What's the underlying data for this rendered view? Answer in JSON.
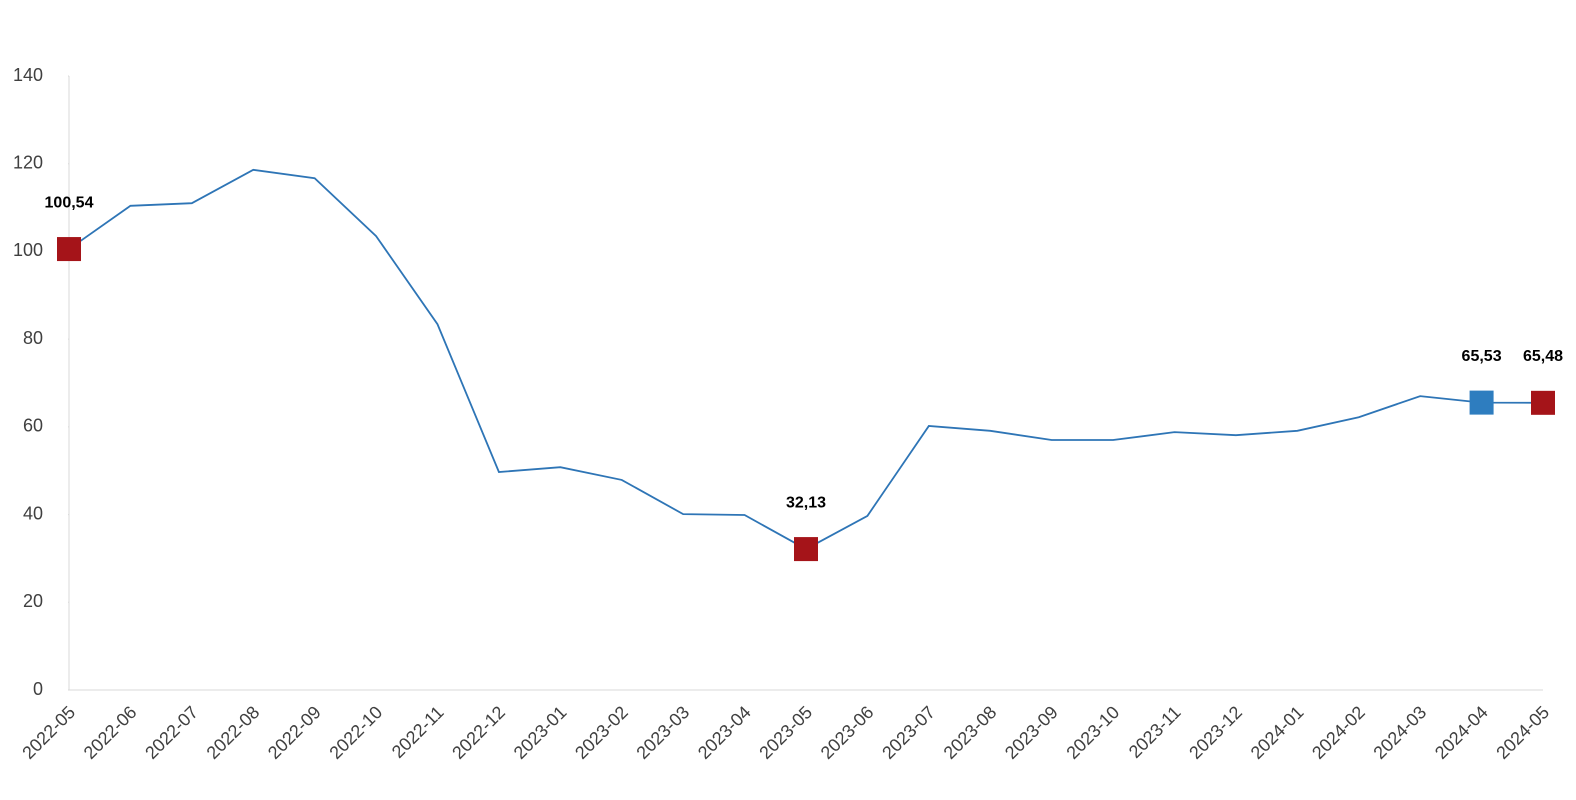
{
  "chart_data": {
    "type": "line",
    "categories": [
      "2022-05",
      "2022-06",
      "2022-07",
      "2022-08",
      "2022-09",
      "2022-10",
      "2022-11",
      "2022-12",
      "2023-01",
      "2023-02",
      "2023-03",
      "2023-04",
      "2023-05",
      "2023-06",
      "2023-07",
      "2023-08",
      "2023-09",
      "2023-10",
      "2023-11",
      "2023-12",
      "2024-01",
      "2024-02",
      "2024-03",
      "2024-04",
      "2024-05"
    ],
    "values": [
      100.54,
      110.4,
      111.0,
      118.6,
      116.7,
      103.5,
      83.4,
      49.7,
      50.8,
      47.9,
      40.1,
      39.9,
      32.13,
      39.7,
      60.2,
      59.1,
      57.0,
      57.0,
      58.8,
      58.1,
      59.1,
      62.2,
      67.0,
      65.53,
      65.48
    ],
    "value_labels": [
      "100,54",
      null,
      null,
      null,
      null,
      null,
      null,
      null,
      null,
      null,
      null,
      null,
      "32,13",
      null,
      null,
      null,
      null,
      null,
      null,
      null,
      null,
      null,
      null,
      "65,53",
      "65,48"
    ],
    "marker_colors": [
      "#a51419",
      null,
      null,
      null,
      null,
      null,
      null,
      null,
      null,
      null,
      null,
      null,
      "#a51419",
      null,
      null,
      null,
      null,
      null,
      null,
      null,
      null,
      null,
      null,
      "#2e7dbf",
      "#a51419"
    ],
    "color": "#2e75b6",
    "ylim": [
      0,
      140
    ],
    "yticks": [
      0,
      20,
      40,
      60,
      80,
      100,
      120,
      140
    ],
    "grid": false
  }
}
